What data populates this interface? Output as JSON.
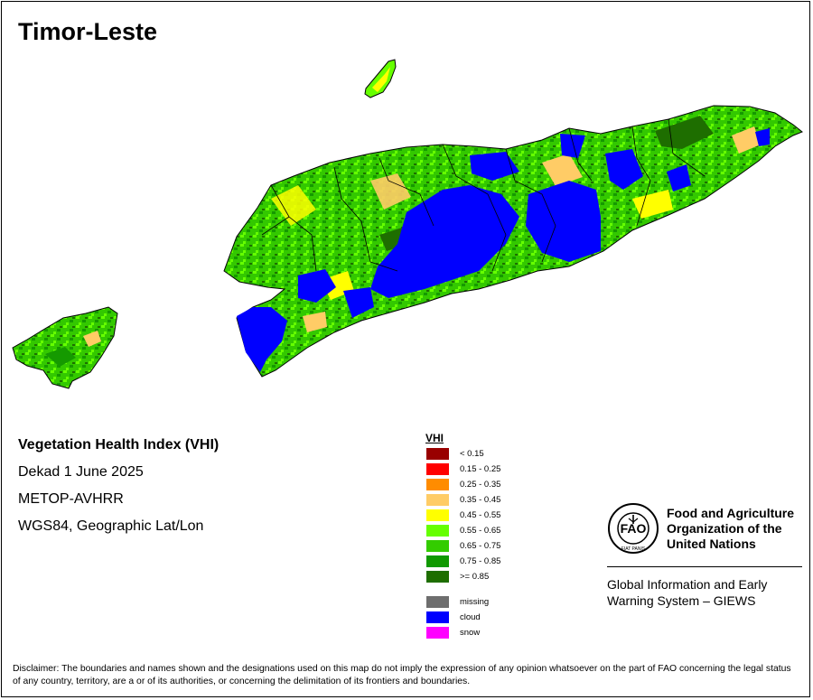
{
  "map": {
    "title": "Timor-Leste",
    "colors": {
      "cloud": "#0000ff",
      "green_dark": "#1e6e00",
      "green": "#159a00",
      "green_mid": "#33c800",
      "green_light": "#66ff00",
      "yellow": "#ffff00",
      "tan": "#ffcc66",
      "border": "#000000"
    }
  },
  "info": {
    "index_name": "Vegetation Health Index (VHI)",
    "period": "Dekad 1 June 2025",
    "sensor": "METOP-AVHRR",
    "projection": "WGS84, Geographic Lat/Lon"
  },
  "legend": {
    "title": "VHI",
    "items": [
      {
        "label": "< 0.15",
        "color": "#990000"
      },
      {
        "label": "0.15 - 0.25",
        "color": "#ff0000"
      },
      {
        "label": "0.25 - 0.35",
        "color": "#ff8c00"
      },
      {
        "label": "0.35 - 0.45",
        "color": "#ffcc66"
      },
      {
        "label": "0.45 - 0.55",
        "color": "#ffff00"
      },
      {
        "label": "0.55 - 0.65",
        "color": "#66ff00"
      },
      {
        "label": "0.65 - 0.75",
        "color": "#33cc00"
      },
      {
        "label": "0.75 - 0.85",
        "color": "#109900"
      },
      {
        "label": ">= 0.85",
        "color": "#1e6e00"
      }
    ],
    "extra": [
      {
        "label": "missing",
        "color": "#6e6e6e"
      },
      {
        "label": "cloud",
        "color": "#0000ff"
      },
      {
        "label": "snow",
        "color": "#ff00ff"
      }
    ]
  },
  "fao": {
    "name_line1": "Food and Agriculture",
    "name_line2": "Organization of the",
    "name_line3": "United Nations",
    "logo_text": "FAO",
    "logo_motto": "FIAT PANIS",
    "giews_line1": "Global Information and Early",
    "giews_line2": "Warning System – GIEWS"
  },
  "disclaimer": "Disclaimer: The boundaries and names shown and the designations used on this map do not imply the expression of any opinion whatsoever on the part of FAO concerning the legal status of any country, territory, are a or of its authorities, or concerning the delimitation of its frontiers and boundaries."
}
